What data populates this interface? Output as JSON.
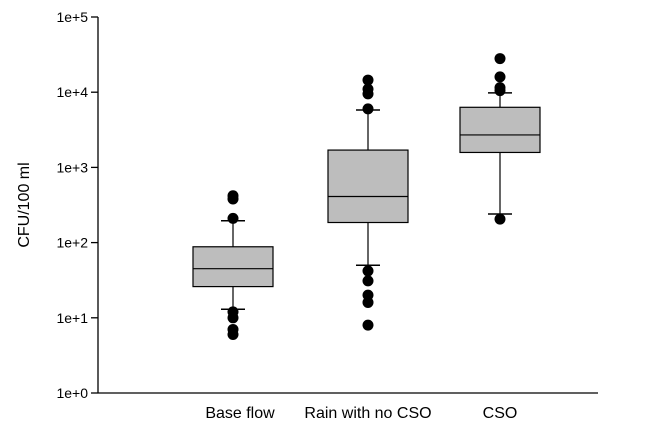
{
  "chart_data": {
    "type": "box",
    "ylabel": "CFU/100 ml",
    "yscale": "log",
    "ylim": [
      1,
      100000
    ],
    "ytick_values": [
      1,
      10,
      100,
      1000,
      10000,
      100000
    ],
    "ytick_labels": [
      "1e+0",
      "1e+1",
      "1e+2",
      "1e+3",
      "1e+4",
      "1e+5"
    ],
    "categories": [
      "Base flow",
      "Rain with no CSO",
      "CSO"
    ],
    "boxes": [
      {
        "category": "Base flow",
        "whisker_low": 13,
        "q1": 26,
        "median": 45,
        "q3": 88,
        "whisker_high": 195,
        "outliers": [
          6,
          7,
          10,
          12,
          210,
          380,
          420
        ]
      },
      {
        "category": "Rain with no CSO",
        "whisker_low": 50,
        "q1": 185,
        "median": 410,
        "q3": 1700,
        "whisker_high": 5800,
        "outliers": [
          8,
          16,
          20,
          31,
          42,
          6000,
          9500,
          11000,
          14500
        ]
      },
      {
        "category": "CSO",
        "whisker_low": 240,
        "q1": 1580,
        "median": 2700,
        "q3": 6300,
        "whisker_high": 9800,
        "outliers": [
          205,
          10500,
          11500,
          16000,
          28000
        ]
      }
    ],
    "box_fill": "#bdbdbd",
    "grid": false,
    "legend": "none"
  }
}
